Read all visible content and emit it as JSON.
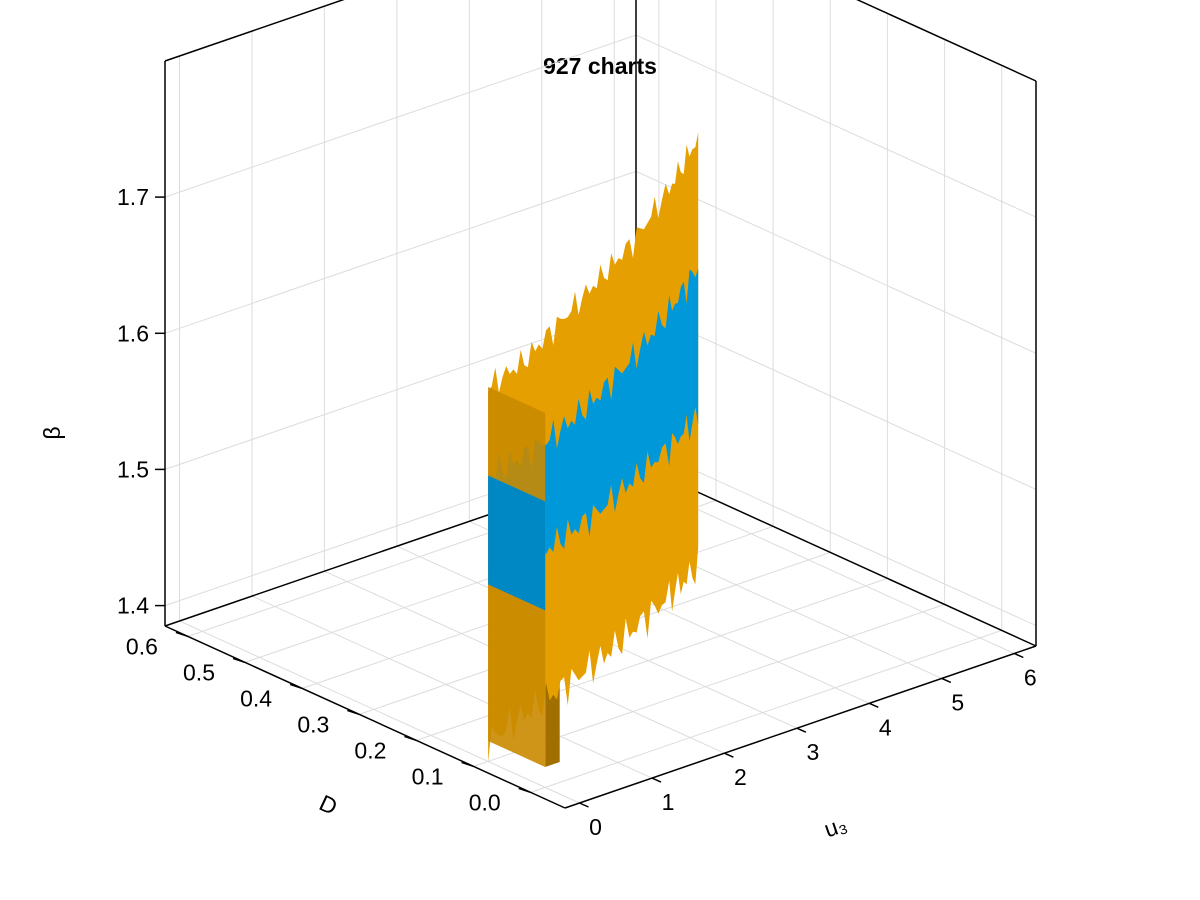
{
  "chart_data": {
    "type": "surface",
    "title": "927 charts",
    "x_axis": {
      "label": "u₃",
      "ticks": [
        "0",
        "1",
        "2",
        "3",
        "4",
        "5",
        "6"
      ],
      "range": [
        -0.2,
        6.3
      ]
    },
    "y_axis": {
      "label": "D",
      "ticks": [
        "0.0",
        "0.1",
        "0.2",
        "0.3",
        "0.4",
        "0.5",
        "0.6"
      ],
      "range": [
        -0.06,
        0.64
      ]
    },
    "z_axis": {
      "label": "β",
      "ticks": [
        "1.4",
        "1.5",
        "1.6",
        "1.7"
      ],
      "range": [
        1.385,
        1.8
      ]
    },
    "grid": true,
    "colors": {
      "surface_primary": "#0098d8",
      "surface_secondary": "#e69f00"
    },
    "surface_bands": [
      {
        "u3": 0.0,
        "beta_max": 1.66,
        "beta_upper_band": 1.595,
        "beta_lower_band": 1.515,
        "beta_min": 1.4
      },
      {
        "u3": 0.5,
        "beta_max": 1.67,
        "beta_upper_band": 1.6,
        "beta_lower_band": 1.52,
        "beta_min": 1.41
      },
      {
        "u3": 1.0,
        "beta_max": 1.69,
        "beta_upper_band": 1.61,
        "beta_lower_band": 1.53,
        "beta_min": 1.42
      },
      {
        "u3": 1.5,
        "beta_max": 1.71,
        "beta_upper_band": 1.625,
        "beta_lower_band": 1.54,
        "beta_min": 1.43
      },
      {
        "u3": 2.0,
        "beta_max": 1.73,
        "beta_upper_band": 1.645,
        "beta_lower_band": 1.555,
        "beta_min": 1.445
      },
      {
        "u3": 2.5,
        "beta_max": 1.76,
        "beta_upper_band": 1.67,
        "beta_lower_band": 1.57,
        "beta_min": 1.46
      },
      {
        "u3": 2.9,
        "beta_max": 1.79,
        "beta_upper_band": 1.695,
        "beta_lower_band": 1.585,
        "beta_min": 1.475
      }
    ],
    "d_span": [
      0.0,
      0.6
    ]
  }
}
